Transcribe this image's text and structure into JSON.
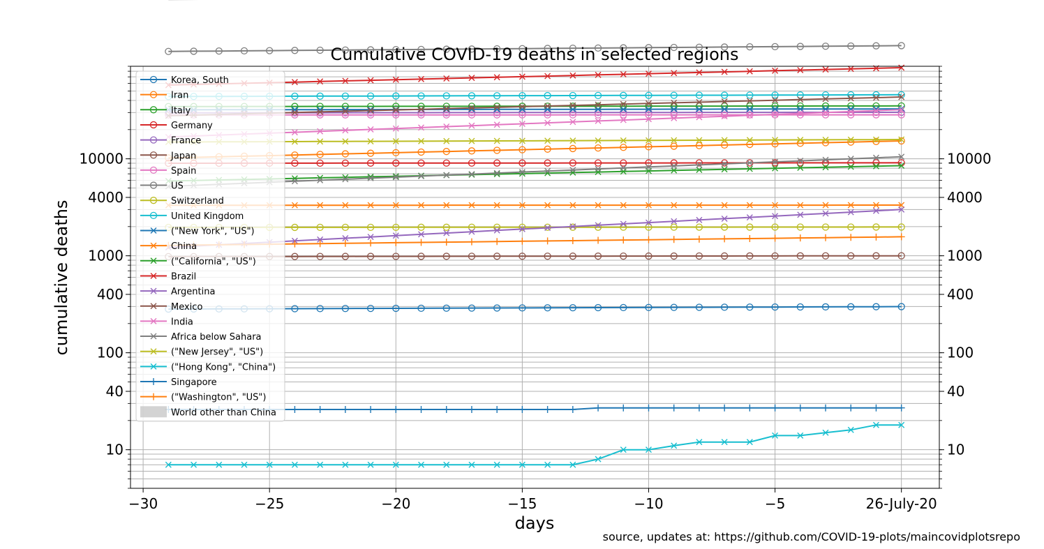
{
  "chart_data": {
    "type": "line",
    "title": "Cumulative COVID-19 deaths in selected regions",
    "xlabel": "days",
    "ylabel": "cumulative deaths",
    "source_note": "source, updates at: https://github.com/COVID-19-plots/maincovidplotsrepo",
    "x_scale": "linear",
    "y_scale": "log",
    "xlim": [
      -30.5,
      1.5
    ],
    "ylim": [
      4,
      90000
    ],
    "x_ticks": [
      -30,
      -25,
      -20,
      -15,
      -10,
      -5,
      0
    ],
    "x_tick_labels": [
      "−30",
      "−25",
      "−20",
      "−15",
      "−10",
      "−5",
      "26-July-20"
    ],
    "y_ticks": [
      10,
      40,
      100,
      400,
      1000,
      4000,
      10000
    ],
    "y_tick_labels": [
      "10",
      "40",
      "100",
      "400",
      "1000",
      "4000",
      "10000"
    ],
    "grid": true,
    "legend_position": "upper-left",
    "x": [
      -29,
      -28,
      -27,
      -26,
      -25,
      -24,
      -23,
      -22,
      -21,
      -20,
      -19,
      -18,
      -17,
      -16,
      -15,
      -14,
      -13,
      -12,
      -11,
      -10,
      -9,
      -8,
      -7,
      -6,
      -5,
      -4,
      -3,
      -2,
      -1,
      0
    ],
    "series": [
      {
        "name": "Korea, South",
        "color": "#1f77b4",
        "marker": "o",
        "start": 282,
        "end": 299
      },
      {
        "name": "Iran",
        "color": "#ff7f0e",
        "marker": "o",
        "start": 10200,
        "end": 15300
      },
      {
        "name": "Italy",
        "color": "#2ca02c",
        "marker": "o",
        "start": 34600,
        "end": 35100
      },
      {
        "name": "Germany",
        "color": "#d62728",
        "marker": "o",
        "start": 9000,
        "end": 9100
      },
      {
        "name": "France",
        "color": "#9467bd",
        "marker": "o",
        "start": 29800,
        "end": 30200
      },
      {
        "name": "Japan",
        "color": "#8c564b",
        "marker": "o",
        "start": 980,
        "end": 1000
      },
      {
        "name": "Spain",
        "color": "#e377c2",
        "marker": "o",
        "start": 28350,
        "end": 28430
      },
      {
        "name": "US",
        "color": "#7f7f7f",
        "marker": "o",
        "start": 128000,
        "end": 146900
      },
      {
        "name": "Switzerland",
        "color": "#bcbd22",
        "marker": "o",
        "start": 1960,
        "end": 1980
      },
      {
        "name": "United Kingdom",
        "color": "#17becf",
        "marker": "o",
        "start": 43900,
        "end": 45750
      },
      {
        "name": "(\"New York\", \"US\")",
        "color": "#1f77b4",
        "marker": "x",
        "start": 32000,
        "end": 32700
      },
      {
        "name": "China",
        "color": "#ff7f0e",
        "marker": "x",
        "start": 3320,
        "end": 3330
      },
      {
        "name": "(\"California\", \"US\")",
        "color": "#2ca02c",
        "marker": "x",
        "start": 5900,
        "end": 8500
      },
      {
        "name": "Brazil",
        "color": "#d62728",
        "marker": "x",
        "start": 57600,
        "end": 87000
      },
      {
        "name": "Argentina",
        "color": "#9467bd",
        "marker": "x",
        "start": 1220,
        "end": 3000
      },
      {
        "name": "Mexico",
        "color": "#8c564b",
        "marker": "x",
        "start": 27800,
        "end": 43400
      },
      {
        "name": "India",
        "color": "#e377c2",
        "marker": "x",
        "start": 16800,
        "end": 32100
      },
      {
        "name": "Africa below Sahara",
        "color": "#7f7f7f",
        "marker": "x",
        "start": 5200,
        "end": 10500
      },
      {
        "name": "(\"New Jersey\", \"US\")",
        "color": "#bcbd22",
        "marker": "x",
        "start": 14900,
        "end": 15800
      },
      {
        "name": "(\"Hong Kong\", \"China\")",
        "color": "#17becf",
        "marker": "x",
        "values": [
          7,
          7,
          7,
          7,
          7,
          7,
          7,
          7,
          7,
          7,
          7,
          7,
          7,
          7,
          7,
          7,
          7,
          8,
          10,
          10,
          11,
          12,
          12,
          12,
          14,
          14,
          15,
          16,
          18,
          18
        ]
      },
      {
        "name": "Singapore",
        "color": "#1f77b4",
        "marker": "+",
        "values": [
          26,
          26,
          26,
          26,
          26,
          26,
          26,
          26,
          26,
          26,
          26,
          26,
          26,
          26,
          26,
          26,
          26,
          27,
          27,
          27,
          27,
          27,
          27,
          27,
          27,
          27,
          27,
          27,
          27,
          27
        ]
      },
      {
        "name": "(\"Washington\", \"US\")",
        "color": "#ff7f0e",
        "marker": "+",
        "start": 1280,
        "end": 1570
      },
      {
        "name": "World other than China",
        "color": "#bbbbbb",
        "marker": "band",
        "start": 500000,
        "end": 640000
      }
    ]
  }
}
